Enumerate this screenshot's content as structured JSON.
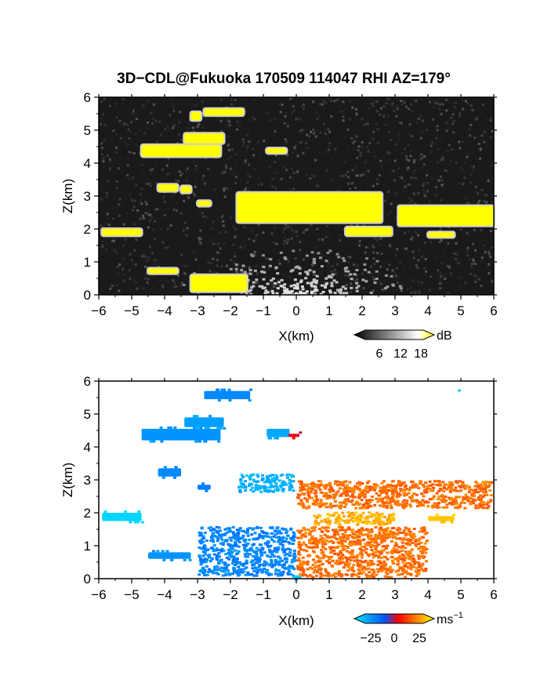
{
  "title": "3D−CDL@Fukuoka 170509 114047 RHI AZ=179°",
  "chart_data": [
    {
      "type": "heatmap",
      "panel": "top",
      "quantity": "reflectivity",
      "xlabel": "X(km)",
      "ylabel": "Z(km)",
      "xlim": [
        -6,
        6
      ],
      "ylim": [
        0,
        6
      ],
      "xticks": [
        "−6",
        "−5",
        "−4",
        "−3",
        "−2",
        "−1",
        "0",
        "1",
        "2",
        "3",
        "4",
        "5",
        "6"
      ],
      "yticks": [
        "0",
        "1",
        "2",
        "3",
        "4",
        "5",
        "6"
      ],
      "colorbar": {
        "unit": "dB",
        "ticks": [
          "6",
          "12",
          "18"
        ],
        "range": [
          0,
          20
        ],
        "colors": [
          "#000000",
          "#ffffff",
          "#ffff00"
        ]
      },
      "background": "noisy dark grey",
      "echo_layers": [
        {
          "x": [
            -4.7,
            -2.3
          ],
          "z": [
            4.2,
            4.55
          ],
          "level": "strong"
        },
        {
          "x": [
            -3.4,
            -2.2
          ],
          "z": [
            4.6,
            4.9
          ],
          "level": "strong"
        },
        {
          "x": [
            -2.8,
            -1.6
          ],
          "z": [
            5.45,
            5.65
          ],
          "level": "strong"
        },
        {
          "x": [
            -3.2,
            -2.9
          ],
          "z": [
            5.3,
            5.55
          ],
          "level": "strong"
        },
        {
          "x": [
            -0.9,
            -0.3
          ],
          "z": [
            4.3,
            4.45
          ],
          "level": "strong"
        },
        {
          "x": [
            -1.8,
            2.6
          ],
          "z": [
            2.2,
            3.1
          ],
          "level": "strong"
        },
        {
          "x": [
            3.1,
            6.0
          ],
          "z": [
            2.1,
            2.7
          ],
          "level": "strong"
        },
        {
          "x": [
            1.5,
            2.9
          ],
          "z": [
            1.8,
            2.05
          ],
          "level": "strong"
        },
        {
          "x": [
            4.0,
            4.8
          ],
          "z": [
            1.75,
            1.9
          ],
          "level": "strong"
        },
        {
          "x": [
            -5.9,
            -4.7
          ],
          "z": [
            1.8,
            2.0
          ],
          "level": "strong"
        },
        {
          "x": [
            -4.2,
            -3.6
          ],
          "z": [
            3.15,
            3.35
          ],
          "level": "strong"
        },
        {
          "x": [
            -3.5,
            -3.2
          ],
          "z": [
            3.1,
            3.3
          ],
          "level": "strong"
        },
        {
          "x": [
            -3.0,
            -2.6
          ],
          "z": [
            2.7,
            2.85
          ],
          "level": "strong"
        },
        {
          "x": [
            -4.5,
            -3.6
          ],
          "z": [
            0.65,
            0.8
          ],
          "level": "strong"
        },
        {
          "x": [
            -3.2,
            -1.5
          ],
          "z": [
            0.1,
            0.6
          ],
          "level": "strong"
        }
      ]
    },
    {
      "type": "heatmap",
      "panel": "bottom",
      "quantity": "Doppler velocity",
      "xlabel": "X(km)",
      "ylabel": "Z(km)",
      "xlim": [
        -6,
        6
      ],
      "ylim": [
        0,
        6
      ],
      "xticks": [
        "−6",
        "−5",
        "−4",
        "−3",
        "−2",
        "−1",
        "0",
        "1",
        "2",
        "3",
        "4",
        "5",
        "6"
      ],
      "yticks": [
        "0",
        "1",
        "2",
        "3",
        "4",
        "5",
        "6"
      ],
      "colorbar": {
        "unit": "ms",
        "unit_exponent": "−1",
        "ticks": [
          "−25",
          "0",
          "25"
        ],
        "range": [
          -35,
          35
        ],
        "colors": [
          "#00e5ff",
          "#0055ff",
          "#ff0000",
          "#ffff00"
        ]
      },
      "velocity_regions": [
        {
          "x": [
            -4.7,
            -2.3
          ],
          "z": [
            4.2,
            4.55
          ],
          "velocity": -20
        },
        {
          "x": [
            -3.4,
            -2.2
          ],
          "z": [
            4.6,
            4.9
          ],
          "velocity": -22
        },
        {
          "x": [
            -2.8,
            -1.4
          ],
          "z": [
            5.45,
            5.7
          ],
          "velocity": -18
        },
        {
          "x": [
            -0.9,
            -0.2
          ],
          "z": [
            4.3,
            4.55
          ],
          "velocity": -24
        },
        {
          "x": [
            -0.25,
            0.1
          ],
          "z": [
            4.3,
            4.4
          ],
          "velocity": 2
        },
        {
          "x": [
            -1.8,
            0.0
          ],
          "z": [
            2.6,
            3.2
          ],
          "velocity": -20
        },
        {
          "x": [
            0.0,
            6.0
          ],
          "z": [
            2.1,
            3.0
          ],
          "velocity": 12
        },
        {
          "x": [
            0.5,
            3.0
          ],
          "z": [
            1.6,
            2.05
          ],
          "velocity": 20
        },
        {
          "x": [
            4.0,
            4.8
          ],
          "z": [
            1.75,
            1.9
          ],
          "velocity": 28
        },
        {
          "x": [
            -5.9,
            -4.7
          ],
          "z": [
            1.75,
            2.0
          ],
          "velocity": -32
        },
        {
          "x": [
            -4.2,
            -3.5
          ],
          "z": [
            3.1,
            3.35
          ],
          "velocity": -18
        },
        {
          "x": [
            -3.0,
            -2.6
          ],
          "z": [
            2.7,
            2.85
          ],
          "velocity": -16
        },
        {
          "x": [
            -4.5,
            -3.2
          ],
          "z": [
            0.6,
            0.8
          ],
          "velocity": -20
        },
        {
          "x": [
            -3.0,
            0.0
          ],
          "z": [
            0.05,
            1.6
          ],
          "velocity": -12
        },
        {
          "x": [
            0.0,
            4.0
          ],
          "z": [
            0.0,
            1.6
          ],
          "velocity": 12
        },
        {
          "x": [
            -0.1,
            0.15
          ],
          "z": [
            0.0,
            0.1
          ],
          "velocity": -30
        },
        {
          "x": [
            4.9,
            5.0
          ],
          "z": [
            5.7,
            5.75
          ],
          "velocity": -30
        }
      ]
    }
  ]
}
